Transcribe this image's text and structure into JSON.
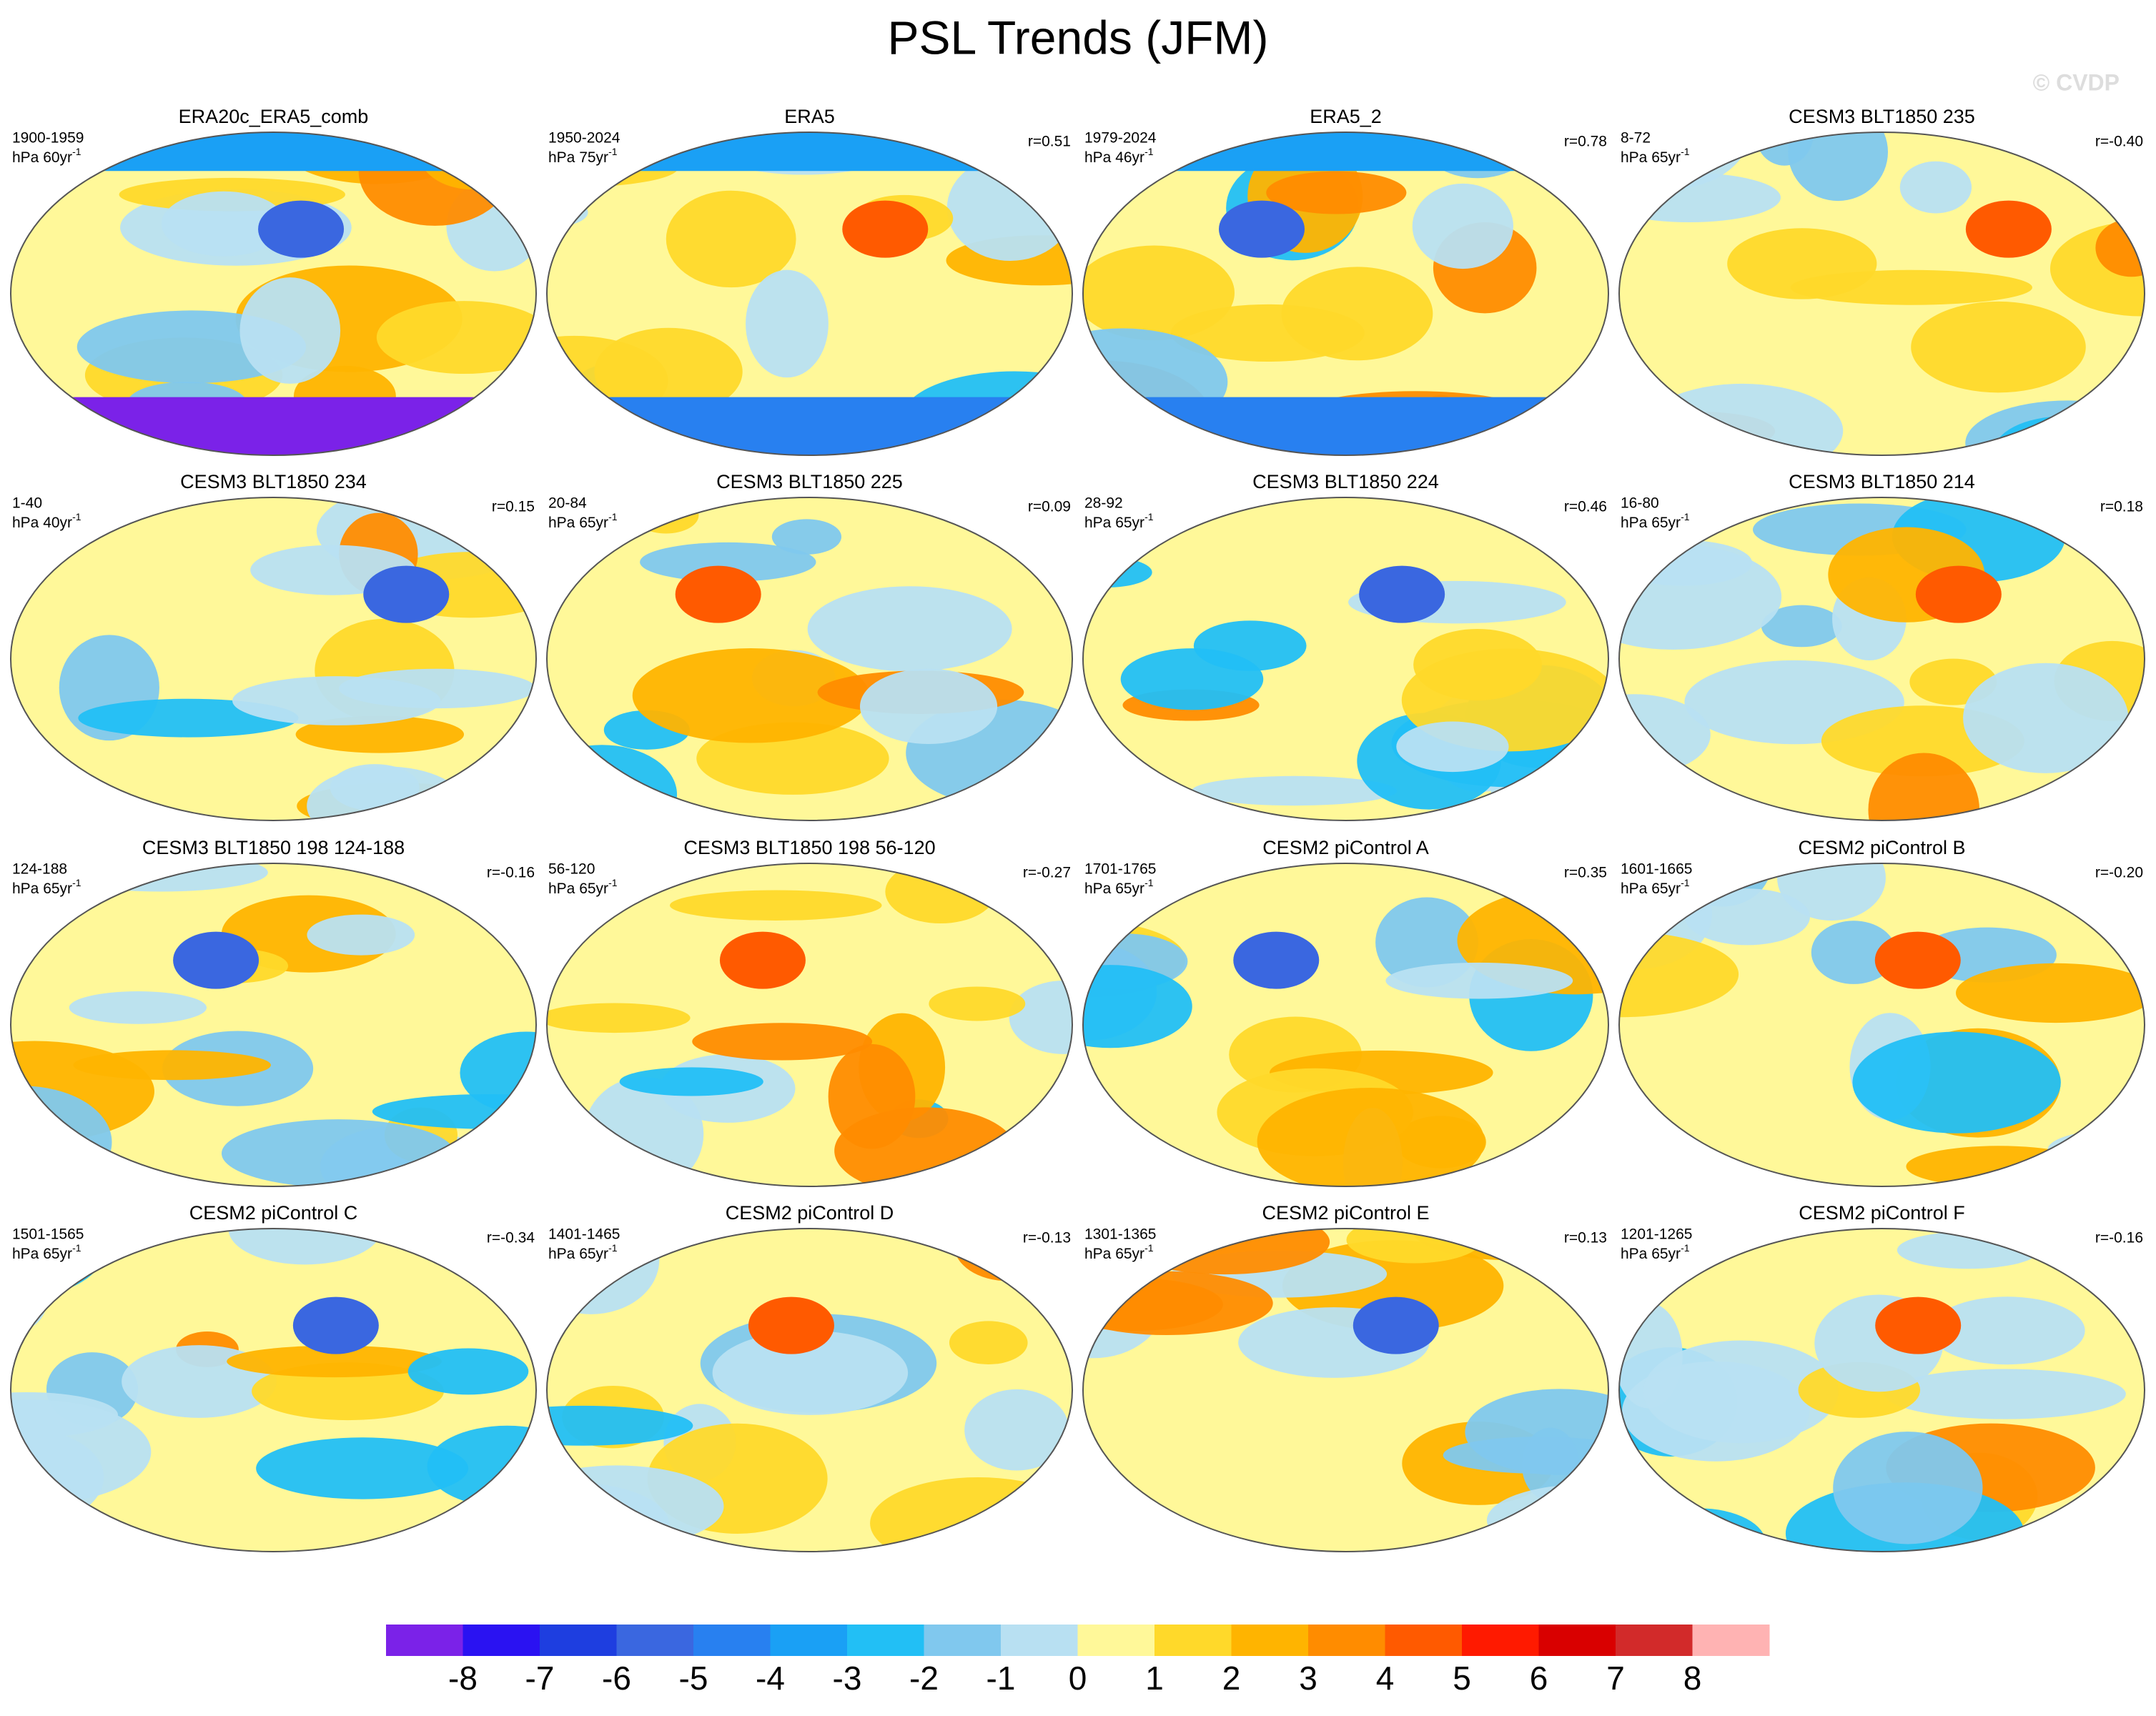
{
  "chart_data": {
    "type": "map_panels",
    "title": "PSL Trends (JFM)",
    "watermark": "© CVDP",
    "units_exp": "-1",
    "panels": [
      {
        "title": "ERA20c_ERA5_comb",
        "period": "1900-1959",
        "units": "hPa 60yr"
      },
      {
        "title": "ERA5",
        "period": "1950-2024",
        "units": "hPa 75yr",
        "r": "r=0.51"
      },
      {
        "title": "ERA5_2",
        "period": "1979-2024",
        "units": "hPa 46yr",
        "r": "r=0.78"
      },
      {
        "title": "CESM3 BLT1850 235",
        "period": "8-72",
        "units": "hPa 65yr",
        "r": "r=-0.40"
      },
      {
        "title": "CESM3 BLT1850 234",
        "period": "1-40",
        "units": "hPa 40yr",
        "r": "r=0.15"
      },
      {
        "title": "CESM3 BLT1850 225",
        "period": "20-84",
        "units": "hPa 65yr",
        "r": "r=0.09"
      },
      {
        "title": "CESM3 BLT1850 224",
        "period": "28-92",
        "units": "hPa 65yr",
        "r": "r=0.46"
      },
      {
        "title": "CESM3 BLT1850 214",
        "period": "16-80",
        "units": "hPa 65yr",
        "r": "r=0.18"
      },
      {
        "title": "CESM3 BLT1850 198 124-188",
        "period": "124-188",
        "units": "hPa 65yr",
        "r": "r=-0.16"
      },
      {
        "title": "CESM3 BLT1850 198 56-120",
        "period": "56-120",
        "units": "hPa 65yr",
        "r": "r=-0.27"
      },
      {
        "title": "CESM2 piControl A",
        "period": "1701-1765",
        "units": "hPa 65yr",
        "r": "r=0.35"
      },
      {
        "title": "CESM2 piControl B",
        "period": "1601-1665",
        "units": "hPa 65yr",
        "r": "r=-0.20"
      },
      {
        "title": "CESM2 piControl C",
        "period": "1501-1565",
        "units": "hPa 65yr",
        "r": "r=-0.34"
      },
      {
        "title": "CESM2 piControl D",
        "period": "1401-1465",
        "units": "hPa 65yr",
        "r": "r=-0.13"
      },
      {
        "title": "CESM2 piControl E",
        "period": "1301-1365",
        "units": "hPa 65yr",
        "r": "r=0.13"
      },
      {
        "title": "CESM2 piControl F",
        "period": "1201-1265",
        "units": "hPa 65yr",
        "r": "r=-0.16"
      }
    ],
    "colorbar": {
      "colors": [
        "#7b22e8",
        "#2a12f2",
        "#1e3ee0",
        "#3a67e0",
        "#2880f0",
        "#1aa0f5",
        "#22bff5",
        "#80c8ee",
        "#b8e0f2",
        "#fff899",
        "#ffd92a",
        "#ffb400",
        "#ff8c00",
        "#ff5a00",
        "#ff1a00",
        "#d90000",
        "#d22a2a",
        "#ffb3b3"
      ],
      "ticks": [
        -8,
        -7,
        -6,
        -5,
        -4,
        -3,
        -2,
        -1,
        0,
        1,
        2,
        3,
        4,
        5,
        6,
        7,
        8
      ]
    }
  }
}
